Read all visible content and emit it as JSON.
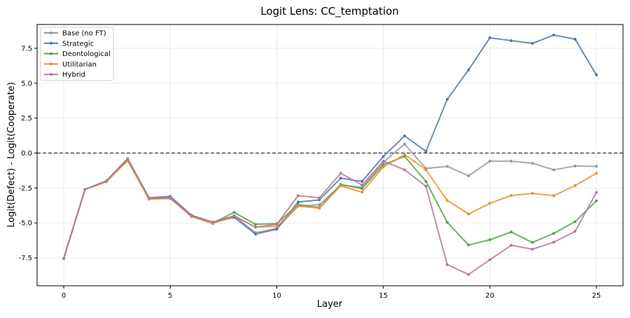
{
  "chart_data": {
    "type": "line",
    "title": "Logit Lens: CC_temptation",
    "xlabel": "Layer",
    "ylabel": "Logit(Defect) - Logit(Cooperate)",
    "xlim": [
      -1.25,
      26.25
    ],
    "ylim": [
      -9.5,
      9.2
    ],
    "xticks": [
      0,
      5,
      10,
      15,
      20,
      25
    ],
    "yticks": [
      -7.5,
      -5.0,
      -2.5,
      0.0,
      2.5,
      5.0,
      7.5
    ],
    "grid": true,
    "legend_position": "top-left",
    "reference_line": {
      "y": 0,
      "style": "dashed",
      "color": "#333333"
    },
    "x": [
      0,
      1,
      2,
      3,
      4,
      5,
      6,
      7,
      8,
      9,
      10,
      11,
      12,
      13,
      14,
      15,
      16,
      17,
      18,
      19,
      20,
      21,
      22,
      23,
      24,
      25
    ],
    "series": [
      {
        "name": "Base (no FT)",
        "color": "#999999",
        "values": [
          -7.55,
          -2.6,
          -2.0,
          -0.45,
          -3.2,
          -3.2,
          -4.5,
          -4.95,
          -4.5,
          -5.7,
          -5.4,
          -3.8,
          -3.7,
          -2.3,
          -2.45,
          -0.66,
          0.64,
          -1.1,
          -0.95,
          -1.63,
          -0.58,
          -0.58,
          -0.73,
          -1.2,
          -0.93,
          -0.95
        ]
      },
      {
        "name": "Strategic",
        "color": "#4e79a7",
        "values": [
          -7.55,
          -2.6,
          -2.0,
          -0.4,
          -3.2,
          -3.1,
          -4.45,
          -4.95,
          -4.6,
          -5.8,
          -5.45,
          -3.5,
          -3.35,
          -1.8,
          -2.03,
          -0.25,
          1.23,
          0.12,
          3.84,
          5.95,
          8.25,
          8.05,
          7.85,
          8.45,
          8.15,
          5.6
        ]
      },
      {
        "name": "Deontological",
        "color": "#59a14f",
        "values": [
          -7.55,
          -2.6,
          -2.05,
          -0.5,
          -3.25,
          -3.25,
          -4.5,
          -5.0,
          -4.25,
          -5.1,
          -5.05,
          -3.7,
          -3.9,
          -2.25,
          -2.55,
          -0.83,
          -0.24,
          -2.03,
          -4.96,
          -6.58,
          -6.21,
          -5.65,
          -6.4,
          -5.75,
          -4.91,
          -3.42
        ]
      },
      {
        "name": "Utilitarian",
        "color": "#f28e2b",
        "values": [
          -7.55,
          -2.6,
          -2.05,
          -0.55,
          -3.3,
          -3.25,
          -4.55,
          -5.05,
          -4.5,
          -5.3,
          -5.25,
          -3.8,
          -3.95,
          -2.35,
          -2.8,
          -1.0,
          -0.11,
          -1.2,
          -3.39,
          -4.36,
          -3.6,
          -3.04,
          -2.89,
          -3.05,
          -2.33,
          -1.45
        ]
      },
      {
        "name": "Hybrid",
        "color": "#b07aa1",
        "values": [
          -7.55,
          -2.6,
          -2.0,
          -0.4,
          -3.2,
          -3.2,
          -4.5,
          -4.95,
          -4.5,
          -5.3,
          -5.1,
          -3.05,
          -3.2,
          -1.45,
          -2.28,
          -0.58,
          -1.2,
          -2.37,
          -7.99,
          -8.69,
          -7.64,
          -6.6,
          -6.88,
          -6.38,
          -5.61,
          -2.82
        ]
      }
    ]
  }
}
